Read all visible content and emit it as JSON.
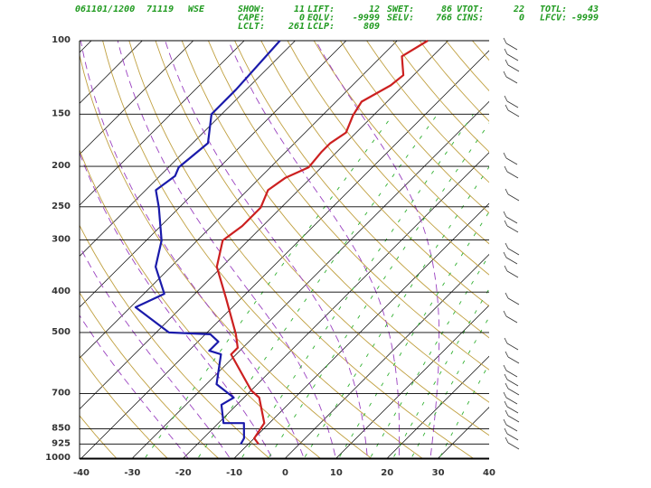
{
  "chart_data": {
    "type": "skewt",
    "date_time": "061101/1200",
    "station_id": "71119",
    "station": "WSE",
    "indices": [
      [
        {
          "label": "SHOW:",
          "value": 11
        },
        {
          "label": "LIFT:",
          "value": 12
        },
        {
          "label": "SWET:",
          "value": 86
        },
        {
          "label": "VTOT:",
          "value": 22
        },
        {
          "label": "TOTL:",
          "value": 43
        }
      ],
      [
        {
          "label": "CAPE:",
          "value": 0
        },
        {
          "label": "EQLV:",
          "value": -9999
        },
        {
          "label": "SELV:",
          "value": 766
        },
        {
          "label": "CINS:",
          "value": 0
        },
        {
          "label": "LFCV:",
          "value": -9999
        }
      ],
      [
        {
          "label": "LCLT:",
          "value": 261
        },
        {
          "label": "LCLP:",
          "value": 809
        }
      ]
    ],
    "ylim": [
      1000,
      100
    ],
    "log_y": true,
    "yticks": [
      100,
      150,
      200,
      250,
      300,
      400,
      500,
      700,
      850,
      925,
      1000
    ],
    "xlim": [
      -40,
      40
    ],
    "xticks": [
      -40,
      -30,
      -20,
      -10,
      0,
      10,
      20,
      30,
      40
    ],
    "series": [
      {
        "name": "Temperature",
        "color": "#cc2020",
        "pressure": [
          925,
          896,
          824,
          716,
          688,
          564,
          544,
          505,
          414,
          348,
          301,
          278,
          251,
          228,
          213,
          201,
          185,
          176,
          166,
          151,
          140,
          128,
          121,
          109,
          100
        ],
        "values": [
          -8,
          -10,
          -11,
          -17,
          -20,
          -31,
          -31,
          -34,
          -43,
          -51,
          -55,
          -54,
          -54,
          -56,
          -55,
          -52.5,
          -53,
          -53,
          -52,
          -54,
          -55,
          -52.5,
          -52,
          -56,
          -54
        ]
      },
      {
        "name": "Dewpoint",
        "color": "#1a1aaa",
        "pressure": [
          925,
          896,
          824,
          824,
          745,
          716,
          665,
          564,
          553,
          526,
          505,
          500,
          435,
          404,
          348,
          301,
          251,
          228,
          211,
          201,
          176,
          150,
          131,
          100
        ],
        "values": [
          -11.5,
          -12,
          -15,
          -19,
          -23,
          -22,
          -28,
          -33,
          -36,
          -36,
          -39,
          -47.5,
          -59,
          -56,
          -63,
          -67,
          -74,
          -78,
          -77,
          -78,
          -77,
          -82,
          -82,
          -83
        ]
      }
    ]
  }
}
